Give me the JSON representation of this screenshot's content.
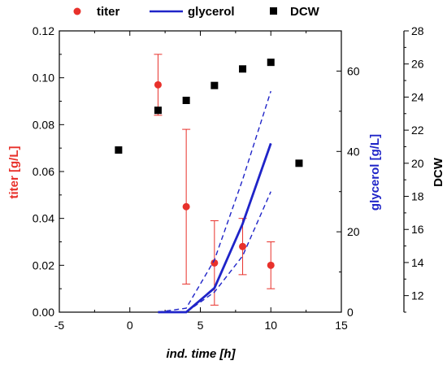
{
  "chart_data": {
    "type": "scatter",
    "xlabel": "ind. time [h]",
    "xlim": [
      -5,
      15
    ],
    "xticks": [
      "-5",
      "0",
      "5",
      "10",
      "15"
    ],
    "axes": {
      "titer": {
        "label": "titer [g/L]",
        "lim": [
          0,
          0.12
        ],
        "ticks": [
          "0.00",
          "0.02",
          "0.04",
          "0.06",
          "0.08",
          "0.10",
          "0.12"
        ],
        "color": "#e8312b"
      },
      "glycerol": {
        "label": "glycerol [g/L]",
        "lim": [
          0,
          70
        ],
        "ticks": [
          "0",
          "20",
          "40",
          "60"
        ],
        "color": "#1f24c8"
      },
      "dcw": {
        "label": "DCW",
        "lim": [
          11,
          28
        ],
        "ticks": [
          "12",
          "14",
          "16",
          "18",
          "20",
          "22",
          "24",
          "26",
          "28"
        ],
        "color": "#000000"
      }
    },
    "series": [
      {
        "name": "titer",
        "kind": "scatter-errorbar",
        "axis": "titer",
        "color": "#e8312b",
        "x": [
          2,
          4,
          6,
          8,
          10
        ],
        "y": [
          0.097,
          0.045,
          0.021,
          0.028,
          0.02
        ],
        "err_low": [
          0.084,
          0.012,
          0.003,
          0.016,
          0.01
        ],
        "err_high": [
          0.11,
          0.078,
          0.039,
          0.04,
          0.03
        ]
      },
      {
        "name": "glycerol",
        "kind": "line",
        "axis": "glycerol",
        "color": "#1f24c8",
        "x": [
          2,
          4,
          6,
          8,
          10
        ],
        "y": [
          0,
          0,
          6,
          22,
          42
        ],
        "upper": {
          "x": [
            2,
            4,
            6,
            8,
            10
          ],
          "y": [
            0,
            1,
            13,
            33,
            55
          ]
        },
        "lower": {
          "x": [
            3.5,
            4,
            6,
            8,
            10
          ],
          "y": [
            0,
            0,
            5,
            14,
            30
          ]
        }
      },
      {
        "name": "DCW",
        "kind": "scatter",
        "axis": "dcw",
        "color": "#000000",
        "x": [
          -0.8,
          2,
          4,
          6,
          8,
          10,
          12
        ],
        "y": [
          20.8,
          23.2,
          23.8,
          24.7,
          25.7,
          26.1,
          20.0
        ]
      }
    ],
    "legend": {
      "placement": "top",
      "items": [
        "titer",
        "glycerol",
        "DCW"
      ]
    }
  }
}
